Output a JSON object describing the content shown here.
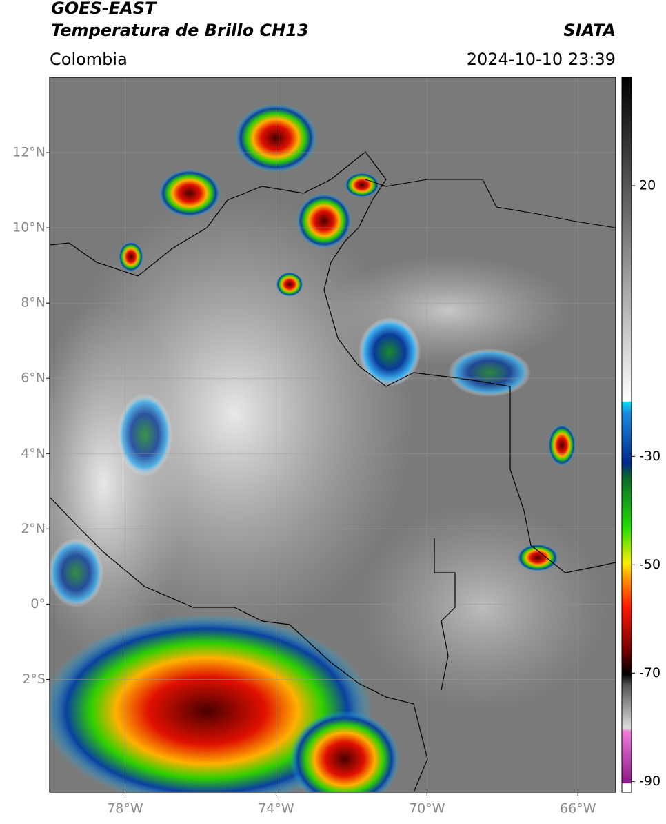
{
  "header": {
    "title": "GOES-EAST",
    "subtitle": "Temperatura de Brillo CH13",
    "region": "Colombia",
    "source": "SIATA",
    "datetime": "2024-10-10 23:39"
  },
  "map": {
    "xlim": [
      -80,
      -65
    ],
    "ylim": [
      -5,
      14
    ],
    "xticks": [
      {
        "value": -78,
        "label": "78°W"
      },
      {
        "value": -74,
        "label": "74°W"
      },
      {
        "value": -70,
        "label": "70°W"
      },
      {
        "value": -66,
        "label": "66°W"
      }
    ],
    "yticks": [
      {
        "value": 12,
        "label": "12°N"
      },
      {
        "value": 10,
        "label": "10°N"
      },
      {
        "value": 8,
        "label": "8°N"
      },
      {
        "value": 6,
        "label": "6°N"
      },
      {
        "value": 4,
        "label": "4°N"
      },
      {
        "value": 2,
        "label": "2°N"
      },
      {
        "value": 0,
        "label": "0°"
      },
      {
        "value": -2,
        "label": "2°S"
      }
    ],
    "grid": true
  },
  "colorbar": {
    "lim": [
      -92,
      40
    ],
    "ticks": [
      20,
      -30,
      -50,
      -70,
      -90
    ]
  }
}
